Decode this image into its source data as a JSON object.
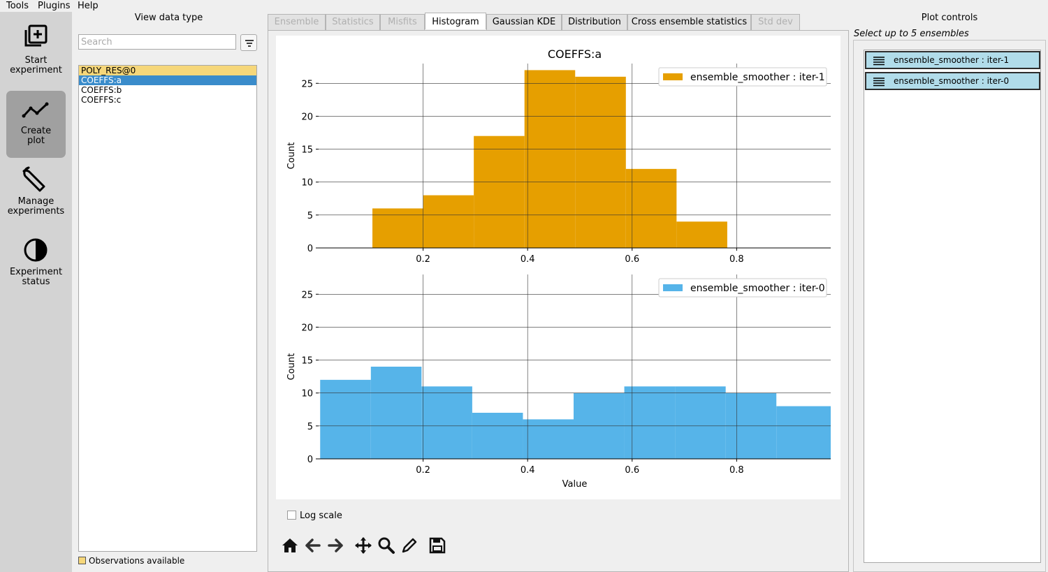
{
  "menu": [
    "Tools",
    "Plugins",
    "Help"
  ],
  "sidebar": {
    "buttons": [
      {
        "line1": "Start",
        "line2": "experiment",
        "icon": "add-box-icon",
        "active": false
      },
      {
        "line1": "Create",
        "line2": "plot",
        "icon": "line-chart-icon",
        "active": true
      },
      {
        "line1": "Manage",
        "line2": "experiments",
        "icon": "wrench-icon",
        "active": false
      },
      {
        "line1": "Experiment",
        "line2": "status",
        "icon": "half-circle-icon",
        "active": false
      }
    ]
  },
  "data_types": {
    "title": "View data type",
    "search_placeholder": "Search",
    "items": [
      {
        "label": "POLY_RES@0",
        "state": "observations"
      },
      {
        "label": "COEFFS:a",
        "state": "selected"
      },
      {
        "label": "COEFFS:b",
        "state": "normal"
      },
      {
        "label": "COEFFS:c",
        "state": "normal"
      }
    ],
    "legend": "Observations available",
    "legend_color": "#f6d77a"
  },
  "tabs": [
    {
      "label": "Ensemble",
      "state": "disabled"
    },
    {
      "label": "Statistics",
      "state": "disabled"
    },
    {
      "label": "Misfits",
      "state": "disabled"
    },
    {
      "label": "Histogram",
      "state": "active"
    },
    {
      "label": "Gaussian KDE",
      "state": "normal"
    },
    {
      "label": "Distribution",
      "state": "normal"
    },
    {
      "label": "Cross ensemble statistics",
      "state": "normal"
    },
    {
      "label": "Std dev",
      "state": "disabled"
    }
  ],
  "chart_data": [
    {
      "type": "bar",
      "title": "COEFFS:a",
      "xlabel": "",
      "ylabel": "Count",
      "xlim": [
        0.0,
        0.98
      ],
      "ylim": [
        0,
        28
      ],
      "xticks": [
        0.2,
        0.4,
        0.6,
        0.8
      ],
      "yticks": [
        0,
        5,
        10,
        15,
        20,
        25
      ],
      "grid": true,
      "legend_placement": "top-right",
      "series": [
        {
          "name": "ensemble_smoother : iter-1",
          "color": "#e69f00",
          "bin_edges": [
            0.103,
            0.2,
            0.297,
            0.394,
            0.491,
            0.588,
            0.685,
            0.782
          ],
          "values": [
            6,
            8,
            17,
            27,
            26,
            12,
            4
          ]
        }
      ]
    },
    {
      "type": "bar",
      "title": "",
      "xlabel": "Value",
      "ylabel": "Count",
      "xlim": [
        0.0,
        0.98
      ],
      "ylim": [
        0,
        28
      ],
      "xticks": [
        0.2,
        0.4,
        0.6,
        0.8
      ],
      "yticks": [
        0,
        5,
        10,
        15,
        20,
        25
      ],
      "grid": true,
      "legend_placement": "top-right",
      "series": [
        {
          "name": "ensemble_smoother : iter-0",
          "color": "#56b4e9",
          "bin_edges": [
            0.003,
            0.1,
            0.197,
            0.294,
            0.391,
            0.488,
            0.585,
            0.682,
            0.779,
            0.876,
            0.98
          ],
          "values": [
            12,
            14,
            11,
            7,
            6,
            10,
            11,
            11,
            10,
            8
          ]
        }
      ]
    }
  ],
  "controls": {
    "log_scale_label": "Log scale",
    "log_scale_checked": false,
    "toolbar": [
      "home-icon",
      "back-arrow-icon",
      "forward-arrow-icon",
      "pan-icon",
      "zoom-icon",
      "edit-icon",
      "save-icon"
    ]
  },
  "plot_controls": {
    "title": "Plot controls",
    "hint": "Select up to 5 ensembles",
    "ensembles": [
      "ensemble_smoother : iter-1",
      "ensemble_smoother : iter-0"
    ],
    "item_color": "#b1dcea"
  }
}
